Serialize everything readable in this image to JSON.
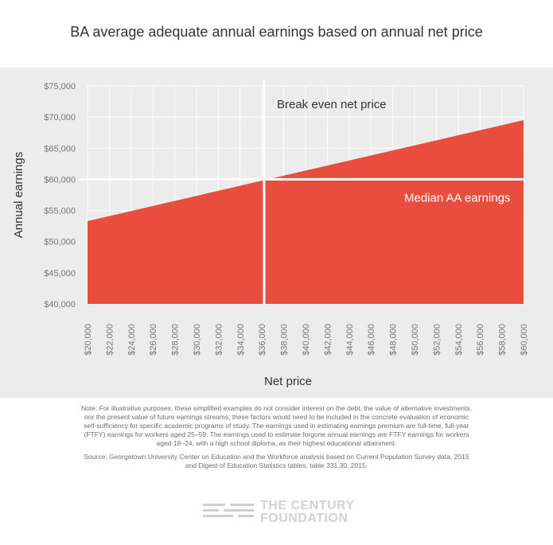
{
  "chart_data": {
    "type": "area",
    "title": "BA average adequate annual earnings based on annual net price",
    "xlabel": "Net price",
    "ylabel": "Annual earnings",
    "x": [
      20000,
      60000
    ],
    "series": [
      {
        "values": [
          53300,
          69500
        ]
      }
    ],
    "ylim": [
      40000,
      75000
    ],
    "xlim": [
      20000,
      60000
    ],
    "ytick_values": [
      40000,
      45000,
      50000,
      55000,
      60000,
      65000,
      70000,
      75000
    ],
    "yticks": [
      "$40,000",
      "$45,000",
      "$50,000",
      "$55,000",
      "$60,000",
      "$65,000",
      "$70,000",
      "$75,000"
    ],
    "xtick_values": [
      20000,
      22000,
      24000,
      26000,
      28000,
      30000,
      32000,
      34000,
      36000,
      38000,
      40000,
      42000,
      44000,
      46000,
      48000,
      50000,
      52000,
      54000,
      56000,
      58000,
      60000
    ],
    "xticks": [
      "$20,000",
      "$22,000",
      "$24,000",
      "$26,000",
      "$28,000",
      "$30,000",
      "$32,000",
      "$34,000",
      "$36,000",
      "$38,000",
      "$40,000",
      "$42,000",
      "$44,000",
      "$46,000",
      "$48,000",
      "$50,000",
      "$52,000",
      "$54,000",
      "$56,000",
      "$58,000",
      "$60,000"
    ],
    "reference_lines": {
      "horizontal": {
        "value": 60000,
        "label": "Median AA earnings"
      },
      "vertical": {
        "value": 36200,
        "label": "Break even net price"
      }
    },
    "grid": true,
    "colors": {
      "area": "#e84d3d",
      "grid": "#ffffff",
      "background": "#ececec"
    }
  },
  "notes": {
    "note": "Note: For illustrative purposes, these simplified examples do not consider interest on the debt, the value of alternative investments, nor the present value of future earnings streams; these factors would need to be included in the concrete evaluation of economic self-sufficiency for specific academic programs of study. The earnings used in estimating earnings premium are full-time, full-year (FTFY) earnings for workers aged 25–59. The earnings used to estimate forgone annual earnings are FTFY earnings for workers aged 18–24, with a high school diploma, as their highest educational attainment.",
    "source": "Source: Georgetown University Center on Education and the Workforce analysis based on Current Population Survey data, 2015 and Digest of Education Statistics tables, table 331.30, 2015."
  },
  "logo": {
    "line1": "THE CENTURY",
    "line2": "FOUNDATION"
  }
}
